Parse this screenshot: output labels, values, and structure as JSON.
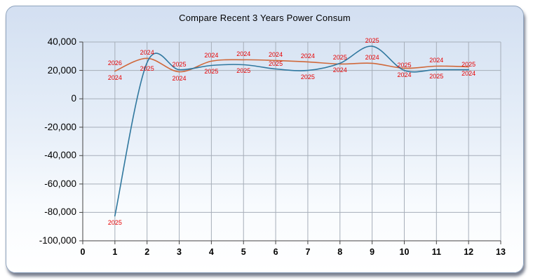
{
  "chart_data": {
    "type": "line",
    "title": "Compare Recent 3 Years Power Consum",
    "xlim": [
      0,
      13
    ],
    "ylim": [
      -100000,
      40000
    ],
    "grid": true,
    "grid_color": "#a6aeb9",
    "axis_color": "#444444",
    "point_label_color": "#e80000",
    "x_ticks": [
      {
        "v": 0,
        "label": "0"
      },
      {
        "v": 1,
        "label": "1"
      },
      {
        "v": 2,
        "label": "2"
      },
      {
        "v": 3,
        "label": "3"
      },
      {
        "v": 4,
        "label": "4"
      },
      {
        "v": 5,
        "label": "5"
      },
      {
        "v": 6,
        "label": "6"
      },
      {
        "v": 7,
        "label": "7"
      },
      {
        "v": 8,
        "label": "8"
      },
      {
        "v": 9,
        "label": "9"
      },
      {
        "v": 10,
        "label": "10"
      },
      {
        "v": 11,
        "label": "11"
      },
      {
        "v": 12,
        "label": "12"
      },
      {
        "v": 13,
        "label": "13"
      }
    ],
    "y_ticks": [
      {
        "v": 40000,
        "label": "40,000"
      },
      {
        "v": 20000,
        "label": "20,000"
      },
      {
        "v": 0,
        "label": "0"
      },
      {
        "v": -20000,
        "label": "-20,000"
      },
      {
        "v": -40000,
        "label": "-40,000"
      },
      {
        "v": -60000,
        "label": "-60,000"
      },
      {
        "v": -80000,
        "label": "-80,000"
      },
      {
        "v": -100000,
        "label": "-100,000"
      }
    ],
    "series": [
      {
        "name": "2024",
        "color": "#d0683a",
        "x": [
          1,
          2,
          3,
          4,
          5,
          6,
          7,
          8,
          9,
          10,
          11,
          12
        ],
        "values": [
          19500,
          28500,
          19000,
          26500,
          27500,
          27000,
          26000,
          24500,
          25000,
          21500,
          23000,
          22500
        ],
        "label_side": [
          "below",
          "above",
          "below",
          "above",
          "above",
          "above",
          "above",
          "below",
          "above",
          "below",
          "above",
          "below"
        ]
      },
      {
        "name": "2025",
        "color": "#30789f",
        "x": [
          1,
          2,
          3,
          4,
          5,
          6,
          7,
          8,
          9,
          10,
          11,
          12
        ],
        "values": [
          -82500,
          25500,
          20500,
          23500,
          24000,
          21000,
          20000,
          25000,
          37000,
          20000,
          20500,
          20500
        ],
        "label_side": [
          "below",
          "below",
          "above",
          "below",
          "below",
          "above",
          "below",
          "above",
          "above",
          "above",
          "below",
          "above"
        ]
      },
      {
        "name": "2026",
        "color": "#d0683a",
        "x": [
          1
        ],
        "values": [
          21500
        ],
        "label_side": [
          "above"
        ]
      }
    ]
  }
}
